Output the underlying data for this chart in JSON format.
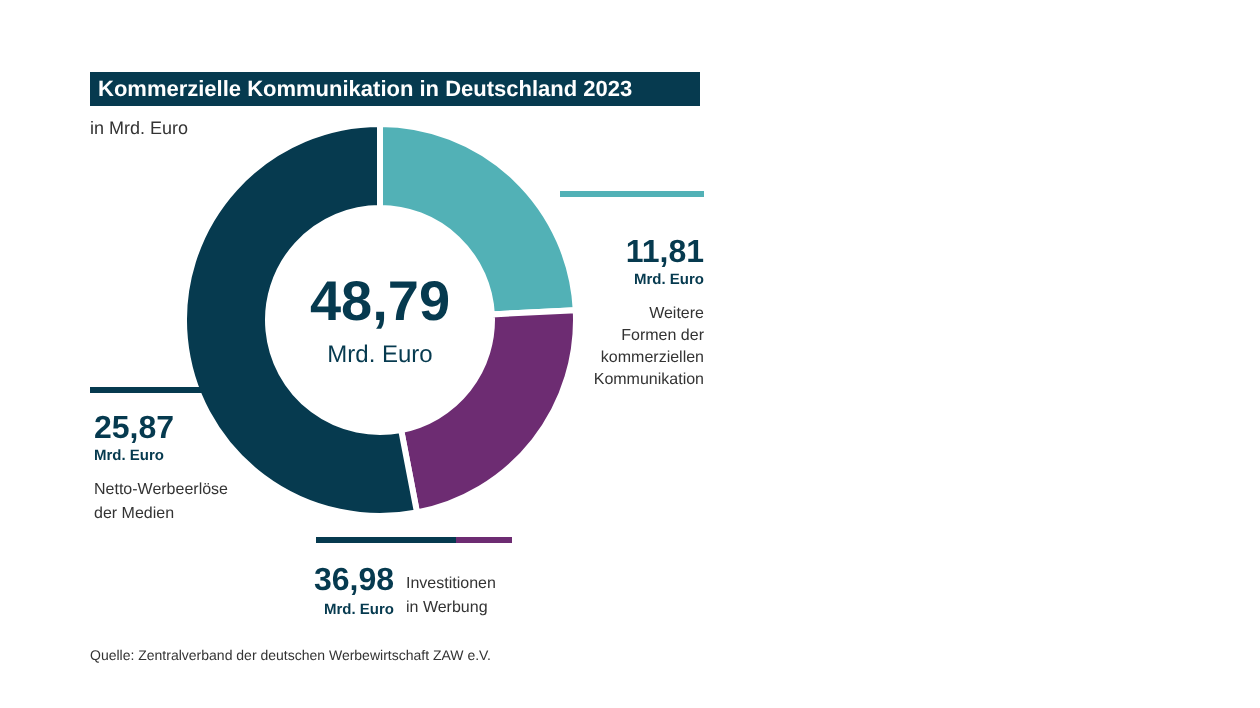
{
  "chart_data": {
    "type": "donut",
    "title": "Kommerzielle Kommunikation in Deutschland 2023",
    "subtitle": "in Mrd. Euro",
    "categories": [
      "Weitere Formen der kommerziellen Kommunikation",
      null,
      "Netto-Werbeerlöse der Medien"
    ],
    "values": [
      11.81,
      11.11,
      25.87
    ],
    "colors": [
      "#52b1b6",
      "#6d2c72",
      "#063a4f"
    ],
    "value_labels": [
      "11,81",
      null,
      "25,87"
    ],
    "annotations": [
      "48,79",
      "Mrd. Euro",
      "Mrd. Euro",
      "Mrd. Euro",
      "36,98",
      "Mrd. Euro",
      "Investitionen in Werbung",
      "Quelle: Zentralverband der deutschen Werbewirtschaft ZAW e.V."
    ]
  }
}
